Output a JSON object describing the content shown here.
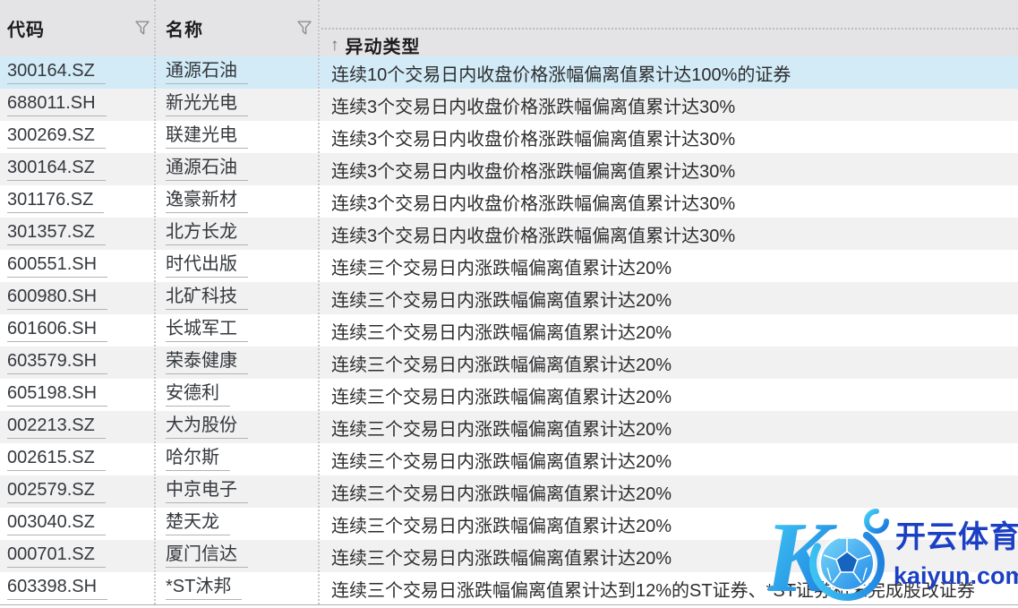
{
  "table": {
    "sort_indicator": "↑",
    "columns": [
      {
        "label": "代码",
        "icon": "filter-funnel-icon"
      },
      {
        "label": "名称",
        "icon": "filter-funnel-icon"
      },
      {
        "label": "异动类型",
        "icon": "sort-ascending-icon"
      }
    ],
    "rows": [
      {
        "code": "300164.SZ",
        "name": "通源石油",
        "type": "连续10个交易日内收盘价格涨幅偏离值累计达100%的证券",
        "selected": true
      },
      {
        "code": "688011.SH",
        "name": "新光光电",
        "type": "连续3个交易日内收盘价格涨跌幅偏离值累计达30%"
      },
      {
        "code": "300269.SZ",
        "name": "联建光电",
        "type": "连续3个交易日内收盘价格涨跌幅偏离值累计达30%"
      },
      {
        "code": "300164.SZ",
        "name": "通源石油",
        "type": "连续3个交易日内收盘价格涨跌幅偏离值累计达30%"
      },
      {
        "code": "301176.SZ",
        "name": "逸豪新材",
        "type": "连续3个交易日内收盘价格涨跌幅偏离值累计达30%"
      },
      {
        "code": "301357.SZ",
        "name": "北方长龙",
        "type": "连续3个交易日内收盘价格涨跌幅偏离值累计达30%"
      },
      {
        "code": "600551.SH",
        "name": "时代出版",
        "type": "连续三个交易日内涨跌幅偏离值累计达20%"
      },
      {
        "code": "600980.SH",
        "name": "北矿科技",
        "type": "连续三个交易日内涨跌幅偏离值累计达20%"
      },
      {
        "code": "601606.SH",
        "name": "长城军工",
        "type": "连续三个交易日内涨跌幅偏离值累计达20%"
      },
      {
        "code": "603579.SH",
        "name": "荣泰健康",
        "type": "连续三个交易日内涨跌幅偏离值累计达20%"
      },
      {
        "code": "605198.SH",
        "name": "安德利",
        "type": "连续三个交易日内涨跌幅偏离值累计达20%"
      },
      {
        "code": "002213.SZ",
        "name": "大为股份",
        "type": "连续三个交易日内涨跌幅偏离值累计达20%"
      },
      {
        "code": "002615.SZ",
        "name": "哈尔斯",
        "type": "连续三个交易日内涨跌幅偏离值累计达20%"
      },
      {
        "code": "002579.SZ",
        "name": "中京电子",
        "type": "连续三个交易日内涨跌幅偏离值累计达20%"
      },
      {
        "code": "003040.SZ",
        "name": "楚天龙",
        "type": "连续三个交易日内涨跌幅偏离值累计达20%"
      },
      {
        "code": "000701.SZ",
        "name": "厦门信达",
        "type": "连续三个交易日内涨跌幅偏离值累计达20%"
      },
      {
        "code": "603398.SH",
        "name": "*ST沐邦",
        "type": "连续三个交易日涨跌幅偏离值累计达到12%的ST证券、*ST证券和未完成股改证券"
      }
    ]
  },
  "watermark": {
    "brand": "开云体育",
    "domain": "kaiyun.com",
    "logo_letter": "K",
    "icon": "soccer-ball-icon"
  },
  "colors": {
    "header_bg": "#e4e4e6",
    "selected_row": "#d2ebf7",
    "alt_row": "#f1f1f2",
    "link_underline": "#b3b3b3",
    "divider_dotted": "#c7c7c9",
    "brand_blue": "#1c40c4",
    "logo_gradient_start": "#42cff5",
    "logo_gradient_end": "#1a74dd"
  }
}
